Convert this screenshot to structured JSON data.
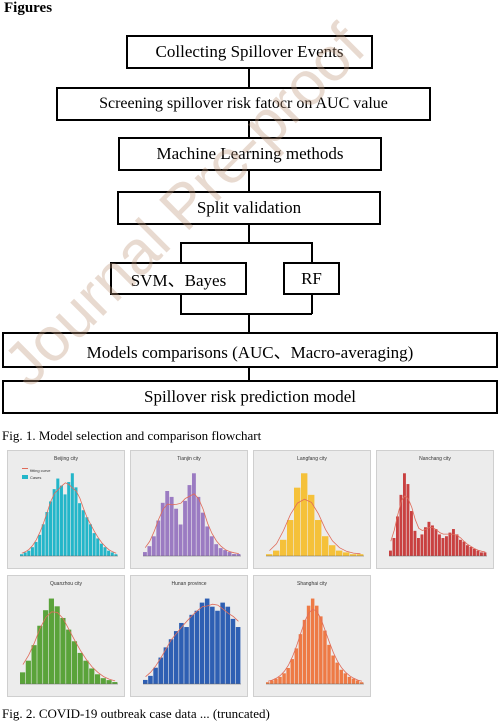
{
  "page": {
    "heading": "Figures",
    "fig1_caption": "Fig. 1. Model selection and comparison flowchart",
    "fig2_caption": "Fig. 2. COVID-19 outbreak case data ... (truncated)",
    "watermark": "Journal Pre-proof"
  },
  "flowchart": {
    "steps": [
      "Collecting Spillover Events",
      "Screening spillover risk fatocr on AUC value",
      "Machine Learning methods",
      "Split validation",
      "SVM、Bayes",
      "RF",
      "Models comparisons (AUC、Macro-averaging)",
      "Spillover risk prediction model"
    ]
  },
  "panels": [
    {
      "title": "Beijing city",
      "legend": [
        "fitting curve",
        "Cases"
      ],
      "color": "#23b6c9"
    },
    {
      "title": "Tianjin city",
      "color": "#9b7bc2"
    },
    {
      "title": "Langfang city",
      "color": "#f5c13a"
    },
    {
      "title": "Nanchang city",
      "color": "#c94040"
    },
    {
      "title": "Quanzhou city",
      "color": "#5aa33a"
    },
    {
      "title": "Hunan province",
      "color": "#2e5fb3"
    },
    {
      "title": "Shanghai city",
      "color": "#ee7a45"
    }
  ],
  "chart_data": [
    {
      "type": "bar",
      "title": "Beijing city",
      "series": [
        {
          "name": "Cases",
          "values": [
            1,
            2,
            3,
            5,
            8,
            12,
            18,
            25,
            31,
            38,
            44,
            40,
            35,
            42,
            47,
            39,
            30,
            26,
            22,
            18,
            13,
            10,
            7,
            5,
            3,
            2,
            1
          ]
        }
      ]
    },
    {
      "type": "bar",
      "title": "Tianjin city",
      "values": [
        2,
        5,
        10,
        18,
        27,
        33,
        30,
        24,
        16,
        28,
        36,
        42,
        30,
        22,
        15,
        10,
        6,
        4,
        3,
        2,
        1,
        1
      ]
    },
    {
      "type": "bar",
      "title": "Langfang city",
      "values": [
        1,
        3,
        9,
        20,
        38,
        46,
        34,
        20,
        11,
        6,
        3,
        2,
        1,
        1
      ]
    },
    {
      "type": "bar",
      "title": "Nanchang city",
      "values": [
        3,
        10,
        22,
        34,
        46,
        40,
        25,
        14,
        10,
        12,
        16,
        19,
        17,
        15,
        12,
        10,
        11,
        13,
        15,
        12,
        9,
        8,
        6,
        5,
        4,
        3,
        2,
        2
      ]
    },
    {
      "type": "bar",
      "title": "Quanzhou city",
      "values": [
        6,
        12,
        20,
        30,
        38,
        44,
        40,
        34,
        28,
        22,
        16,
        12,
        8,
        5,
        3,
        2,
        1
      ]
    },
    {
      "type": "bar",
      "title": "Hunan province",
      "values": [
        2,
        4,
        8,
        13,
        18,
        22,
        26,
        30,
        28,
        34,
        36,
        40,
        42,
        38,
        36,
        40,
        38,
        32,
        28
      ]
    },
    {
      "type": "bar",
      "title": "Shanghai city",
      "values": [
        1,
        2,
        3,
        4,
        6,
        9,
        14,
        20,
        28,
        36,
        44,
        48,
        44,
        38,
        30,
        22,
        16,
        12,
        8,
        6,
        4,
        3,
        2,
        1
      ]
    }
  ]
}
